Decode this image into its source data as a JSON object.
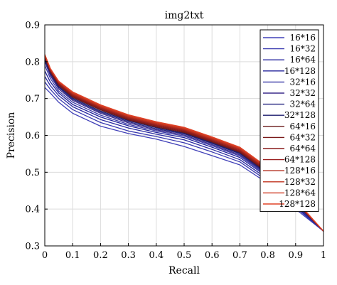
{
  "chart_data": {
    "type": "line",
    "title": "img2txt",
    "xlabel": "Recall",
    "ylabel": "Precision",
    "xlim": [
      0,
      1
    ],
    "ylim": [
      0.3,
      0.9
    ],
    "xticks": [
      "0",
      "0.1",
      "0.2",
      "0.3",
      "0.4",
      "0.5",
      "0.6",
      "0.7",
      "0.8",
      "0.9",
      "1"
    ],
    "yticks": [
      "0.3",
      "0.4",
      "0.5",
      "0.6",
      "0.7",
      "0.8",
      "0.9"
    ],
    "grid": true,
    "legend_position": "top-right",
    "x": [
      0,
      0.02,
      0.05,
      0.1,
      0.2,
      0.3,
      0.4,
      0.5,
      0.6,
      0.7,
      0.8,
      0.9,
      1.0
    ],
    "series": [
      {
        "name": "16*16",
        "color": "#4040b8",
        "values": [
          0.73,
          0.715,
          0.69,
          0.66,
          0.625,
          0.605,
          0.59,
          0.57,
          0.545,
          0.52,
          0.47,
          0.4,
          0.34
        ]
      },
      {
        "name": "16*32",
        "color": "#3a3ab0",
        "values": [
          0.745,
          0.725,
          0.7,
          0.67,
          0.635,
          0.612,
          0.597,
          0.58,
          0.555,
          0.528,
          0.476,
          0.405,
          0.34
        ]
      },
      {
        "name": "16*64",
        "color": "#2a2aa0",
        "values": [
          0.76,
          0.735,
          0.708,
          0.678,
          0.643,
          0.62,
          0.603,
          0.588,
          0.562,
          0.534,
          0.482,
          0.408,
          0.34
        ]
      },
      {
        "name": "16*128",
        "color": "#20209a",
        "values": [
          0.775,
          0.745,
          0.715,
          0.684,
          0.65,
          0.626,
          0.608,
          0.594,
          0.568,
          0.54,
          0.487,
          0.411,
          0.34
        ]
      },
      {
        "name": "32*16",
        "color": "#3c3ca8",
        "values": [
          0.79,
          0.755,
          0.72,
          0.69,
          0.655,
          0.63,
          0.612,
          0.598,
          0.572,
          0.544,
          0.49,
          0.413,
          0.34
        ]
      },
      {
        "name": "32*32",
        "color": "#3a2a8a",
        "values": [
          0.8,
          0.762,
          0.726,
          0.695,
          0.66,
          0.634,
          0.615,
          0.601,
          0.575,
          0.547,
          0.493,
          0.415,
          0.34
        ]
      },
      {
        "name": "32*64",
        "color": "#252580",
        "values": [
          0.805,
          0.767,
          0.73,
          0.698,
          0.663,
          0.637,
          0.618,
          0.604,
          0.578,
          0.55,
          0.495,
          0.416,
          0.34
        ]
      },
      {
        "name": "32*128",
        "color": "#1c1c6e",
        "values": [
          0.81,
          0.77,
          0.733,
          0.701,
          0.666,
          0.64,
          0.621,
          0.606,
          0.58,
          0.552,
          0.497,
          0.417,
          0.34
        ]
      },
      {
        "name": "64*16",
        "color": "#6a1818",
        "values": [
          0.812,
          0.772,
          0.736,
          0.704,
          0.669,
          0.642,
          0.623,
          0.608,
          0.582,
          0.554,
          0.499,
          0.418,
          0.34
        ]
      },
      {
        "name": "64*32",
        "color": "#7a1a1a",
        "values": [
          0.814,
          0.774,
          0.738,
          0.706,
          0.671,
          0.644,
          0.625,
          0.61,
          0.584,
          0.556,
          0.501,
          0.419,
          0.34
        ]
      },
      {
        "name": "64*64",
        "color": "#8a1c1c",
        "values": [
          0.815,
          0.776,
          0.74,
          0.708,
          0.673,
          0.646,
          0.627,
          0.612,
          0.586,
          0.558,
          0.503,
          0.42,
          0.34
        ]
      },
      {
        "name": "64*128",
        "color": "#9a2020",
        "values": [
          0.816,
          0.778,
          0.742,
          0.71,
          0.675,
          0.648,
          0.629,
          0.614,
          0.588,
          0.56,
          0.505,
          0.421,
          0.34
        ]
      },
      {
        "name": "128*16",
        "color": "#b02a1a",
        "values": [
          0.817,
          0.779,
          0.744,
          0.712,
          0.677,
          0.65,
          0.631,
          0.616,
          0.59,
          0.562,
          0.507,
          0.422,
          0.34
        ]
      },
      {
        "name": "128*32",
        "color": "#c0321e",
        "values": [
          0.818,
          0.78,
          0.745,
          0.714,
          0.679,
          0.652,
          0.633,
          0.618,
          0.592,
          0.564,
          0.509,
          0.423,
          0.34
        ]
      },
      {
        "name": "128*64",
        "color": "#d03a22",
        "values": [
          0.819,
          0.781,
          0.746,
          0.716,
          0.681,
          0.654,
          0.635,
          0.62,
          0.594,
          0.566,
          0.511,
          0.424,
          0.34
        ]
      },
      {
        "name": "128*128",
        "color": "#e04226",
        "values": [
          0.82,
          0.782,
          0.747,
          0.718,
          0.683,
          0.656,
          0.637,
          0.622,
          0.596,
          0.568,
          0.513,
          0.425,
          0.34
        ]
      }
    ]
  }
}
